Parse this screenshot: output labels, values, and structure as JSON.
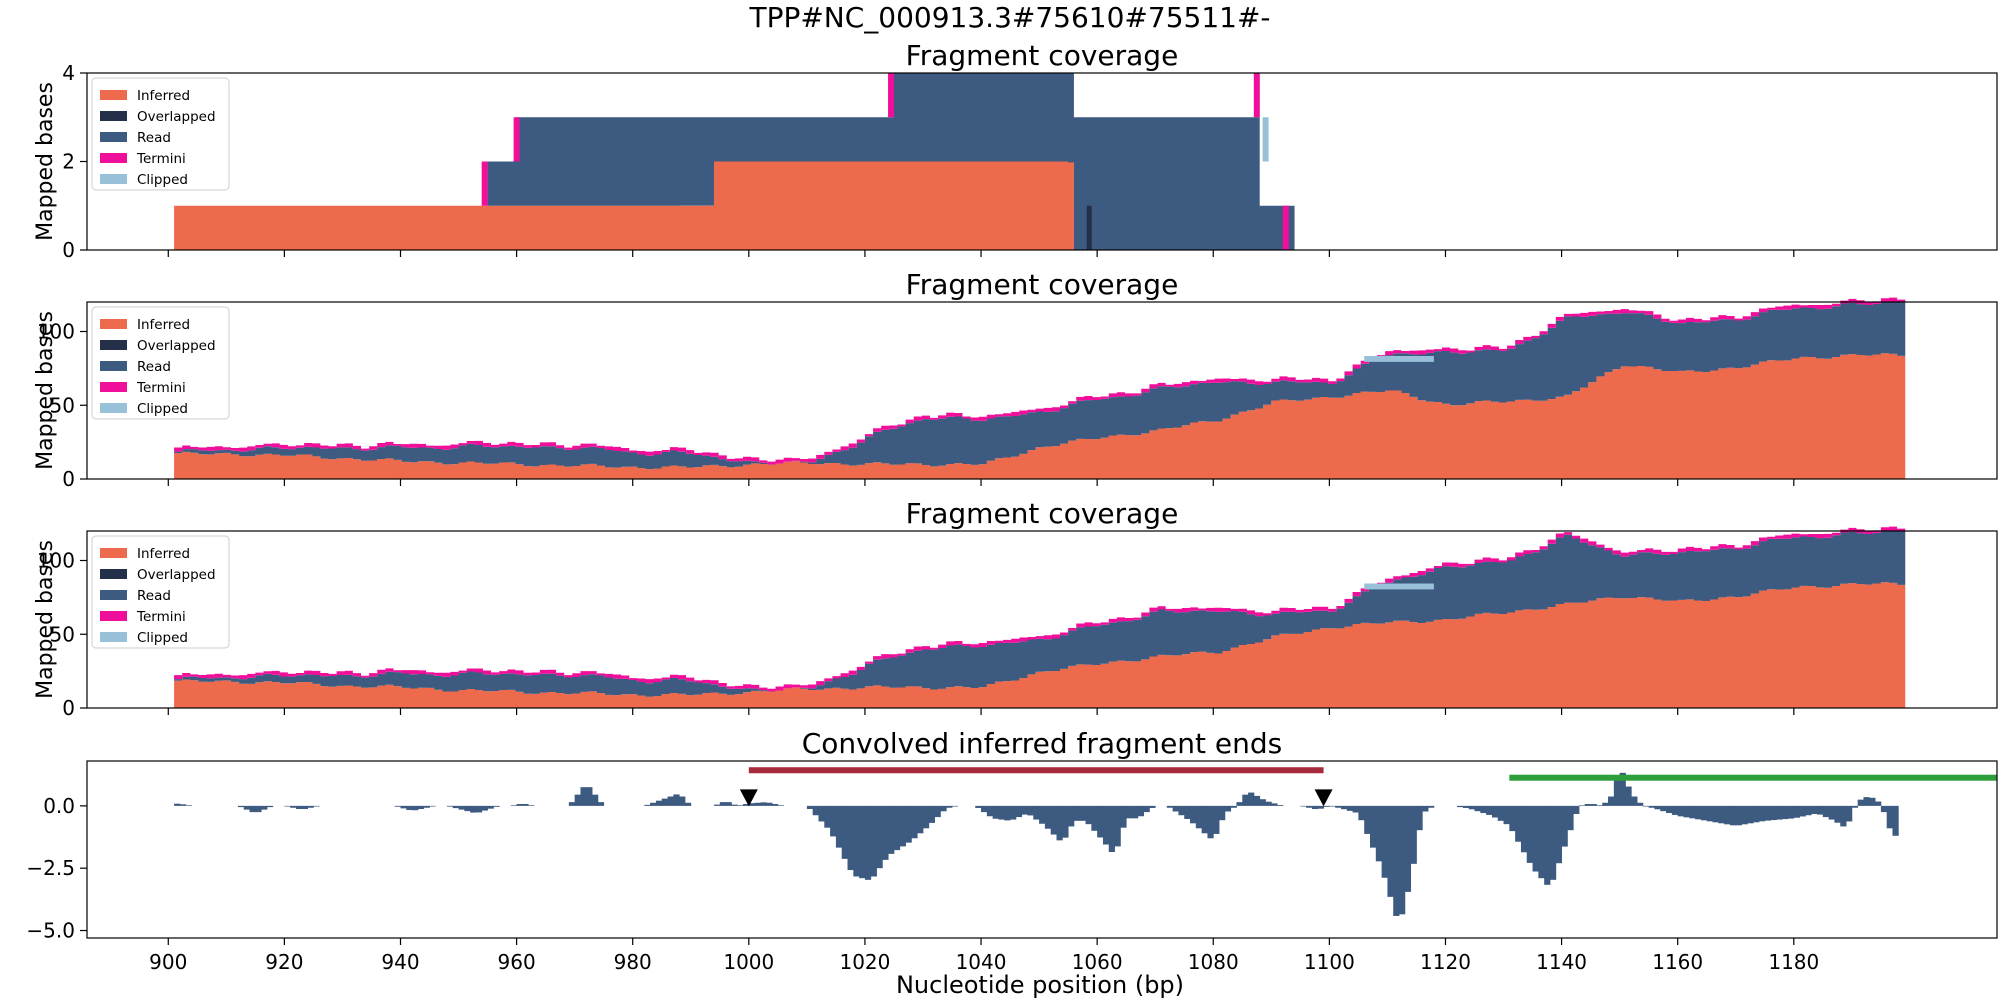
{
  "figure": {
    "suptitle": "TPP#NC_000913.3#75610#75511#-",
    "xlabel": "Nucleotide position (bp)"
  },
  "colors": {
    "inferred": "#EE6A4D",
    "overlapped": "#24304A",
    "read": "#3D5A80",
    "termini": "#F00F9A",
    "clipped": "#98C1D9",
    "marker": "#000000",
    "bar_red": "#A52A3A",
    "bar_green": "#2E9E3A"
  },
  "legend": [
    "Inferred",
    "Overlapped",
    "Read",
    "Termini",
    "Clipped"
  ],
  "chart_data": [
    {
      "type": "area",
      "title": "Fragment coverage",
      "ylabel": "Mapped bases",
      "xlim": [
        886,
        1215
      ],
      "ylim": [
        0,
        4
      ],
      "yticks": [
        0,
        2,
        4
      ],
      "legend_position": "top-left",
      "grid": false,
      "series": [
        {
          "name": "Inferred",
          "points": [
            [
              901,
              1
            ],
            [
              954,
              1
            ],
            [
              960,
              1
            ],
            [
              988,
              1
            ],
            [
              994,
              2
            ],
            [
              1055,
              2
            ],
            [
              1056,
              0
            ]
          ]
        },
        {
          "name": "Read",
          "points": [
            [
              954,
              1
            ],
            [
              955,
              2
            ],
            [
              960,
              3
            ],
            [
              988,
              3
            ],
            [
              994,
              3
            ],
            [
              1024,
              3
            ],
            [
              1025,
              4
            ],
            [
              1055,
              4
            ],
            [
              1056,
              3
            ],
            [
              1087,
              3
            ],
            [
              1088,
              1
            ],
            [
              1093,
              1
            ],
            [
              1094,
              0
            ]
          ]
        },
        {
          "name": "Overlapped",
          "points": [
            [
              1058,
              1
            ],
            [
              1059,
              0
            ]
          ]
        },
        {
          "name": "Termini",
          "points": [
            [
              954,
              0.15
            ],
            [
              960,
              0.15
            ],
            [
              1025,
              0.15
            ],
            [
              1088,
              0.15
            ],
            [
              1093,
              0.15
            ]
          ]
        },
        {
          "name": "Clipped",
          "points": [
            [
              1088,
              0.5
            ],
            [
              1090,
              0.5
            ]
          ]
        }
      ]
    },
    {
      "type": "area",
      "title": "Fragment coverage",
      "ylabel": "Mapped bases",
      "xlim": [
        886,
        1215
      ],
      "ylim": [
        0,
        120
      ],
      "yticks": [
        0,
        50,
        100
      ],
      "legend_position": "top-left",
      "grid": false,
      "series": [
        {
          "name": "Inferred",
          "x": [
            901,
            910,
            920,
            930,
            940,
            950,
            960,
            970,
            980,
            990,
            1000,
            1010,
            1020,
            1030,
            1040,
            1050,
            1060,
            1070,
            1080,
            1090,
            1100,
            1110,
            1120,
            1130,
            1140,
            1150,
            1160,
            1170,
            1180,
            1190,
            1197
          ],
          "values": [
            17,
            17,
            16,
            14,
            12,
            11,
            10,
            9,
            8,
            8,
            10,
            11,
            10,
            10,
            10,
            22,
            28,
            33,
            40,
            52,
            56,
            60,
            50,
            53,
            55,
            78,
            72,
            76,
            82,
            84,
            84
          ]
        },
        {
          "name": "Read",
          "x": [
            901,
            910,
            920,
            930,
            940,
            950,
            960,
            970,
            980,
            990,
            1000,
            1010,
            1020,
            1030,
            1040,
            1050,
            1060,
            1070,
            1080,
            1090,
            1100,
            1110,
            1120,
            1130,
            1140,
            1150,
            1160,
            1170,
            1180,
            1190,
            1197
          ],
          "values": [
            1,
            3,
            5,
            7,
            9,
            11,
            12,
            12,
            10,
            9,
            1,
            0,
            18,
            32,
            30,
            24,
            26,
            28,
            26,
            13,
            10,
            25,
            36,
            34,
            53,
            36,
            33,
            33,
            34,
            34,
            36
          ]
        },
        {
          "name": "Termini",
          "x": [
            901,
            1199
          ],
          "values": [
            0,
            0
          ]
        },
        {
          "name": "Clipped",
          "x": [
            1106,
            1118
          ],
          "values": [
            4,
            4
          ]
        }
      ]
    },
    {
      "type": "area",
      "title": "Fragment coverage",
      "ylabel": "Mapped bases",
      "xlim": [
        886,
        1215
      ],
      "ylim": [
        0,
        120
      ],
      "yticks": [
        0,
        50,
        100
      ],
      "legend_position": "top-left",
      "grid": false,
      "series": [
        {
          "name": "Inferred",
          "x": [
            901,
            910,
            920,
            930,
            940,
            950,
            960,
            970,
            980,
            990,
            1000,
            1010,
            1020,
            1030,
            1040,
            1050,
            1060,
            1070,
            1080,
            1090,
            1100,
            1110,
            1120,
            1130,
            1140,
            1150,
            1160,
            1170,
            1180,
            1190,
            1197
          ],
          "values": [
            18,
            18,
            17,
            15,
            14,
            12,
            11,
            10,
            9,
            9,
            11,
            13,
            14,
            14,
            14,
            25,
            30,
            35,
            38,
            48,
            55,
            58,
            60,
            65,
            70,
            76,
            72,
            76,
            82,
            84,
            84
          ]
        },
        {
          "name": "Read",
          "x": [
            901,
            910,
            920,
            930,
            940,
            950,
            960,
            970,
            980,
            990,
            1000,
            1010,
            1020,
            1030,
            1040,
            1050,
            1060,
            1070,
            1080,
            1090,
            1100,
            1110,
            1120,
            1130,
            1140,
            1150,
            1160,
            1170,
            1180,
            1190,
            1197
          ],
          "values": [
            1,
            3,
            5,
            7,
            9,
            11,
            12,
            12,
            10,
            9,
            1,
            0,
            15,
            27,
            28,
            22,
            26,
            30,
            28,
            15,
            12,
            28,
            36,
            34,
            46,
            28,
            33,
            33,
            34,
            34,
            36
          ]
        },
        {
          "name": "Termini",
          "x": [
            901,
            1199
          ],
          "values": [
            0,
            0
          ]
        },
        {
          "name": "Clipped",
          "x": [
            1106,
            1118
          ],
          "values": [
            4,
            4
          ]
        }
      ]
    },
    {
      "type": "bar",
      "title": "Convolved inferred fragment ends",
      "ylabel": "",
      "xlim": [
        886,
        1215
      ],
      "ylim": [
        -5.3,
        1.8
      ],
      "yticks": [
        0.0,
        -2.5,
        -5.0
      ],
      "ytick_labels": [
        "0.0",
        "−2.5",
        "−5.0"
      ],
      "xticks": [
        900,
        920,
        940,
        960,
        980,
        1000,
        1020,
        1040,
        1060,
        1080,
        1100,
        1120,
        1140,
        1160,
        1180
      ],
      "grid": false,
      "values_knots": [
        [
          901,
          0.1
        ],
        [
          903,
          0.05
        ],
        [
          904,
          0
        ],
        [
          912,
          0
        ],
        [
          915,
          -0.3
        ],
        [
          918,
          0
        ],
        [
          920,
          0
        ],
        [
          923,
          -0.15
        ],
        [
          926,
          0
        ],
        [
          939,
          0
        ],
        [
          942,
          -0.2
        ],
        [
          946,
          0
        ],
        [
          948,
          0
        ],
        [
          953,
          -0.3
        ],
        [
          957,
          0
        ],
        [
          959,
          0
        ],
        [
          961,
          0.1
        ],
        [
          963,
          0
        ],
        [
          969,
          0
        ],
        [
          972,
          0.9
        ],
        [
          975,
          0
        ],
        [
          982,
          0
        ],
        [
          988,
          0.5
        ],
        [
          990,
          0
        ],
        [
          994,
          0
        ],
        [
          996,
          0.2
        ],
        [
          998,
          0
        ],
        [
          1000,
          0.1
        ],
        [
          1003,
          0.15
        ],
        [
          1006,
          0
        ],
        [
          1010,
          0
        ],
        [
          1014,
          -1
        ],
        [
          1018,
          -2.8
        ],
        [
          1021,
          -3
        ],
        [
          1024,
          -2
        ],
        [
          1028,
          -1.4
        ],
        [
          1031,
          -0.8
        ],
        [
          1034,
          -0.1
        ],
        [
          1036,
          0
        ],
        [
          1039,
          0
        ],
        [
          1042,
          -0.5
        ],
        [
          1045,
          -0.6
        ],
        [
          1048,
          -0.3
        ],
        [
          1051,
          -0.8
        ],
        [
          1054,
          -1.5
        ],
        [
          1056,
          -0.6
        ],
        [
          1058,
          -0.6
        ],
        [
          1061,
          -1.4
        ],
        [
          1063,
          -2
        ],
        [
          1065,
          -0.5
        ],
        [
          1067,
          -0.5
        ],
        [
          1070,
          0
        ],
        [
          1072,
          0
        ],
        [
          1076,
          -0.6
        ],
        [
          1080,
          -1.4
        ],
        [
          1082,
          -0.3
        ],
        [
          1084,
          0
        ],
        [
          1086,
          0.6
        ],
        [
          1089,
          0.2
        ],
        [
          1092,
          0
        ],
        [
          1095,
          0
        ],
        [
          1098,
          -0.15
        ],
        [
          1100,
          0
        ],
        [
          1102,
          -0.1
        ],
        [
          1105,
          -0.3
        ],
        [
          1109,
          -2.5
        ],
        [
          1112,
          -4.8
        ],
        [
          1114,
          -3
        ],
        [
          1116,
          -0.3
        ],
        [
          1118,
          0
        ],
        [
          1121,
          0
        ],
        [
          1124,
          -0.1
        ],
        [
          1128,
          -0.4
        ],
        [
          1131,
          -0.8
        ],
        [
          1135,
          -2.5
        ],
        [
          1138,
          -3.3
        ],
        [
          1141,
          -1.3
        ],
        [
          1143,
          0
        ],
        [
          1145,
          0.1
        ],
        [
          1147,
          0
        ],
        [
          1149,
          0.5
        ],
        [
          1150,
          1.6
        ],
        [
          1152,
          0.5
        ],
        [
          1154,
          0
        ],
        [
          1156,
          -0.1
        ],
        [
          1160,
          -0.4
        ],
        [
          1165,
          -0.6
        ],
        [
          1170,
          -0.8
        ],
        [
          1175,
          -0.6
        ],
        [
          1180,
          -0.5
        ],
        [
          1184,
          -0.3
        ],
        [
          1187,
          -0.6
        ],
        [
          1189,
          -0.9
        ],
        [
          1191,
          0.2
        ],
        [
          1193,
          0.4
        ],
        [
          1195,
          0.1
        ],
        [
          1196,
          -0.6
        ],
        [
          1197,
          -1.2
        ]
      ],
      "triangle_markers_x": [
        1000,
        1099
      ],
      "red_bar": {
        "x_start": 1000,
        "x_end": 1099
      },
      "green_bar": {
        "x_start": 1131,
        "x_end": 1215
      }
    }
  ]
}
